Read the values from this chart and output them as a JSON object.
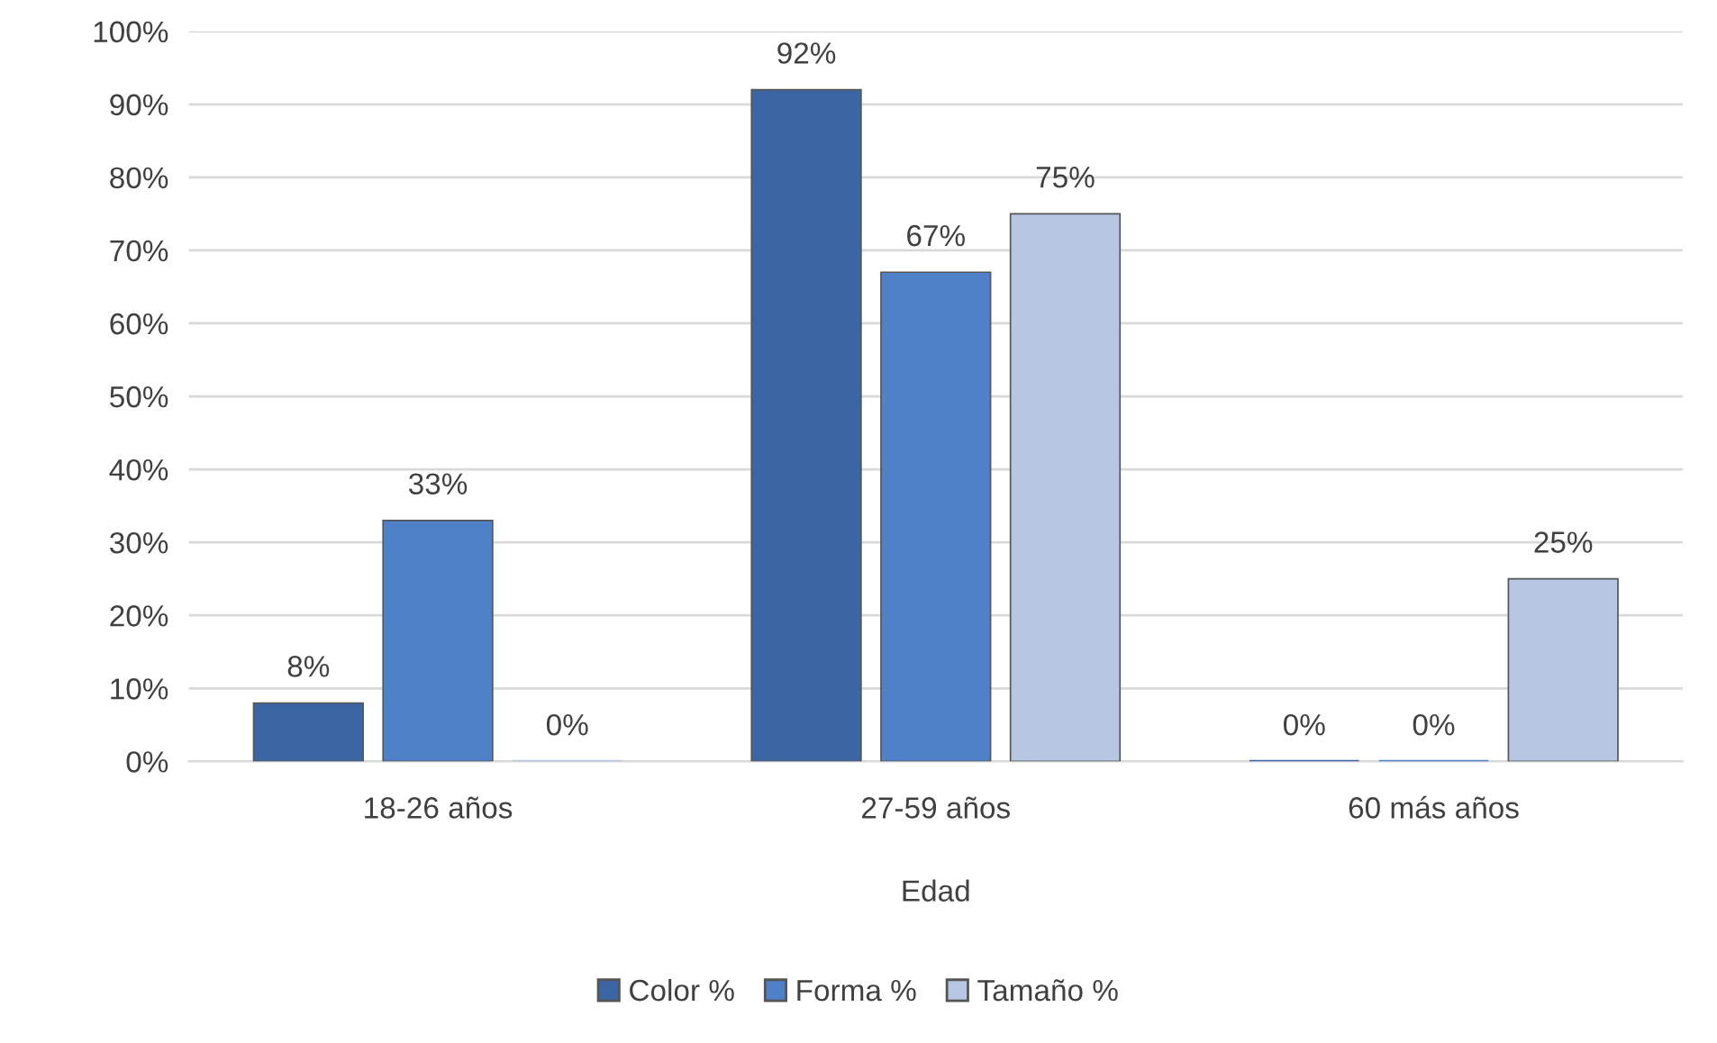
{
  "chart_data": {
    "type": "bar",
    "xlabel": "Edad",
    "categories": [
      "18-26 años",
      "27-59 años",
      "60 más años"
    ],
    "series": [
      {
        "name": "Color %",
        "color": "#3b66a3",
        "values": [
          8,
          92,
          0
        ],
        "value_labels": [
          "8%",
          "92%",
          "0%"
        ]
      },
      {
        "name": "Forma %",
        "color": "#4f81c8",
        "values": [
          33,
          67,
          0
        ],
        "value_labels": [
          "33%",
          "67%",
          "0%"
        ]
      },
      {
        "name": "Tamaño %",
        "color": "#b6c6e3",
        "values": [
          0,
          75,
          25
        ],
        "value_labels": [
          "0%",
          "75%",
          "25%"
        ]
      }
    ],
    "ylim": [
      0,
      100
    ],
    "yticks": [
      {
        "value": 0,
        "label": "0%"
      },
      {
        "value": 10,
        "label": "10%"
      },
      {
        "value": 20,
        "label": "20%"
      },
      {
        "value": 30,
        "label": "30%"
      },
      {
        "value": 40,
        "label": "40%"
      },
      {
        "value": 50,
        "label": "50%"
      },
      {
        "value": 60,
        "label": "60%"
      },
      {
        "value": 70,
        "label": "70%"
      },
      {
        "value": 80,
        "label": "80%"
      },
      {
        "value": 90,
        "label": "90%"
      },
      {
        "value": 100,
        "label": "100%"
      }
    ],
    "grid": "y",
    "legend": "bottom"
  }
}
